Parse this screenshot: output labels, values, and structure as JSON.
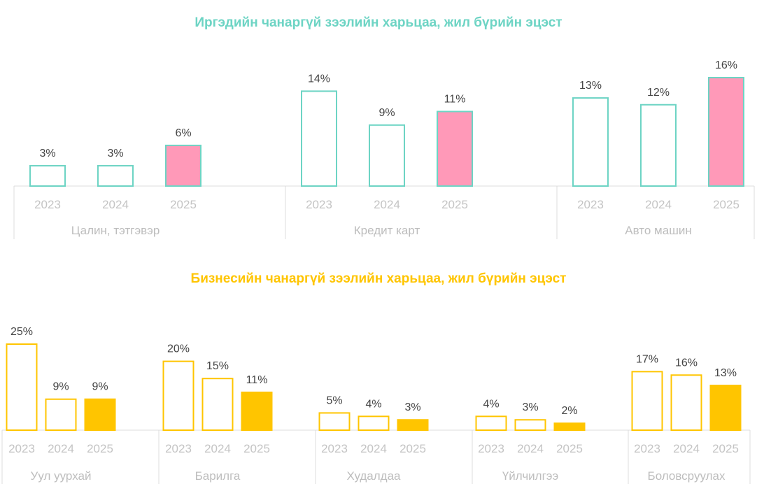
{
  "colors": {
    "individual_accent": "#6dd4c4",
    "individual_highlight": "#ff99b8",
    "business_accent": "#ffc500",
    "business_highlight": "#ffc500",
    "axis": "#dcdcdc"
  },
  "chart_data": [
    {
      "type": "bar",
      "title": "Иргэдийн чанаргүй зээлийн харьцаа, жил бүрийн эцэст",
      "ylabel": "",
      "ylim": [
        0,
        16
      ],
      "groups": [
        {
          "name": "Цалин, тэтгэвэр",
          "categories": [
            "2023",
            "2024",
            "2025"
          ],
          "values": [
            3,
            3,
            6
          ],
          "labels": [
            "3%",
            "3%",
            "6%"
          ]
        },
        {
          "name": "Кредит карт",
          "categories": [
            "2023",
            "2024",
            "2025"
          ],
          "values": [
            14,
            9,
            11
          ],
          "labels": [
            "14%",
            "9%",
            "11%"
          ]
        },
        {
          "name": "Авто машин",
          "categories": [
            "2023",
            "2024",
            "2025"
          ],
          "values": [
            13,
            12,
            16
          ],
          "labels": [
            "13%",
            "12%",
            "16%"
          ]
        }
      ]
    },
    {
      "type": "bar",
      "title": "Бизнесийн чанаргүй зээлийн харьцаа, жил бүрийн эцэст",
      "ylabel": "",
      "ylim": [
        0,
        25
      ],
      "groups": [
        {
          "name": "Уул уурхай",
          "categories": [
            "2023",
            "2024",
            "2025"
          ],
          "values": [
            25,
            9,
            9
          ],
          "labels": [
            "25%",
            "9%",
            "9%"
          ]
        },
        {
          "name": "Барилга",
          "categories": [
            "2023",
            "2024",
            "2025"
          ],
          "values": [
            20,
            15,
            11
          ],
          "labels": [
            "20%",
            "15%",
            "11%"
          ]
        },
        {
          "name": "Худалдаа",
          "categories": [
            "2023",
            "2024",
            "2025"
          ],
          "values": [
            5,
            4,
            3
          ],
          "labels": [
            "5%",
            "4%",
            "3%"
          ]
        },
        {
          "name": "Үйлчилгээ",
          "categories": [
            "2023",
            "2024",
            "2025"
          ],
          "values": [
            4,
            3,
            2
          ],
          "labels": [
            "4%",
            "3%",
            "2%"
          ]
        },
        {
          "name": "Боловсруулах",
          "categories": [
            "2023",
            "2024",
            "2025"
          ],
          "values": [
            17,
            16,
            13
          ],
          "labels": [
            "17%",
            "16%",
            "13%"
          ]
        }
      ]
    }
  ]
}
